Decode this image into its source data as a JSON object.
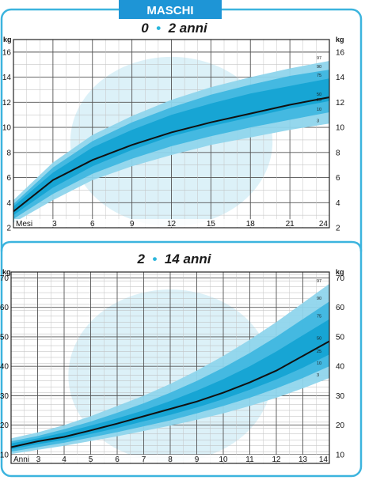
{
  "header": {
    "label": "MASCHI"
  },
  "colors": {
    "accent": "#1e95d6",
    "frame": "#3cb4de",
    "band_outer": "#8fd5ec",
    "band_mid": "#3fb7e0",
    "band_inner": "#15a3d3",
    "median_line": "#111111",
    "photo_tint": "#bfe6f3"
  },
  "chart_data": [
    {
      "type": "area",
      "title_parts": [
        "0",
        "•",
        "2 anni"
      ],
      "y_unit": "kg",
      "x_unit": "Mesi",
      "xlim": [
        0,
        24
      ],
      "ylim": [
        2,
        17
      ],
      "x_ticks": [
        3,
        6,
        9,
        12,
        15,
        18,
        21,
        24
      ],
      "y_ticks": [
        2,
        4,
        6,
        8,
        10,
        12,
        14,
        16
      ],
      "x": [
        0,
        3,
        6,
        9,
        12,
        15,
        18,
        21,
        24
      ],
      "percentile_labels": [
        "97",
        "90",
        "75",
        "50",
        "25",
        "10",
        "3"
      ],
      "series": [
        {
          "name": "97",
          "values": [
            4.2,
            7.2,
            9.4,
            10.9,
            12.2,
            13.2,
            14.0,
            14.7,
            15.3
          ]
        },
        {
          "name": "90",
          "values": [
            3.9,
            6.8,
            8.9,
            10.4,
            11.6,
            12.6,
            13.4,
            14.1,
            14.6
          ]
        },
        {
          "name": "75",
          "values": [
            3.7,
            6.4,
            8.4,
            9.8,
            11.0,
            11.9,
            12.7,
            13.3,
            13.9
          ]
        },
        {
          "name": "50",
          "values": [
            3.3,
            5.8,
            7.4,
            8.6,
            9.6,
            10.4,
            11.1,
            11.8,
            12.4
          ]
        },
        {
          "name": "25",
          "values": [
            3.0,
            5.2,
            6.9,
            8.2,
            9.3,
            10.1,
            10.8,
            11.5,
            12.1
          ]
        },
        {
          "name": "10",
          "values": [
            2.7,
            4.7,
            6.3,
            7.5,
            8.5,
            9.3,
            10.0,
            10.6,
            11.2
          ]
        },
        {
          "name": "3",
          "values": [
            2.4,
            4.2,
            5.8,
            6.9,
            7.8,
            8.6,
            9.2,
            9.8,
            10.3
          ]
        }
      ]
    },
    {
      "type": "area",
      "title_parts": [
        "2",
        "•",
        "14 anni"
      ],
      "y_unit": "kg",
      "x_unit": "Anni",
      "xlim": [
        2,
        14
      ],
      "ylim": [
        7,
        72
      ],
      "x_ticks": [
        3,
        4,
        5,
        6,
        7,
        8,
        9,
        10,
        11,
        12,
        13,
        14
      ],
      "y_ticks": [
        10,
        20,
        30,
        40,
        50,
        60,
        70
      ],
      "x": [
        2,
        3,
        4,
        5,
        6,
        7,
        8,
        9,
        10,
        11,
        12,
        13,
        14
      ],
      "percentile_labels": [
        "97",
        "90",
        "75",
        "50",
        "25",
        "10",
        "3"
      ],
      "series": [
        {
          "name": "97",
          "values": [
            15.5,
            17.5,
            20.0,
            23.0,
            26.5,
            30.0,
            34.0,
            38.5,
            43.5,
            49.0,
            55.0,
            61.5,
            68.0
          ]
        },
        {
          "name": "90",
          "values": [
            14.5,
            16.3,
            18.6,
            21.2,
            24.2,
            27.4,
            31.0,
            35.0,
            39.5,
            44.5,
            50.0,
            56.0,
            62.0
          ]
        },
        {
          "name": "75",
          "values": [
            13.8,
            15.5,
            17.5,
            19.8,
            22.3,
            25.0,
            28.2,
            31.7,
            35.6,
            40.0,
            45.0,
            50.5,
            56.0
          ]
        },
        {
          "name": "50",
          "values": [
            12.5,
            14.5,
            16.0,
            18.2,
            20.5,
            23.0,
            25.5,
            28.0,
            31.0,
            34.5,
            38.5,
            43.5,
            48.5
          ]
        },
        {
          "name": "25",
          "values": [
            11.8,
            13.5,
            15.0,
            17.0,
            19.0,
            21.3,
            23.5,
            26.0,
            28.8,
            32.0,
            35.5,
            39.5,
            44.0
          ]
        },
        {
          "name": "10",
          "values": [
            11.0,
            12.5,
            14.0,
            15.8,
            17.6,
            19.6,
            21.6,
            24.0,
            26.5,
            29.3,
            32.5,
            36.0,
            40.0
          ]
        },
        {
          "name": "3",
          "values": [
            10.2,
            11.6,
            13.0,
            14.6,
            16.2,
            18.0,
            19.8,
            21.8,
            24.0,
            26.5,
            29.3,
            32.5,
            36.0
          ]
        }
      ]
    }
  ]
}
